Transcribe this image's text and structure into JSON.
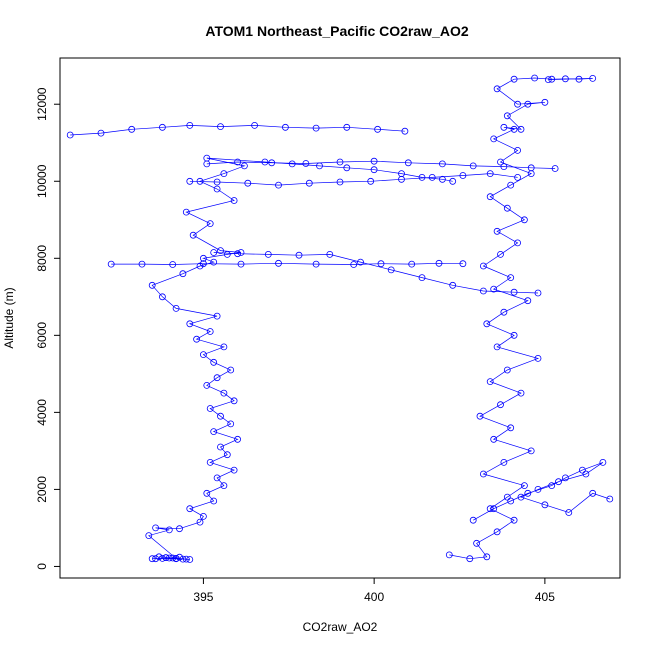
{
  "chart_data": {
    "type": "scatter",
    "title": "ATOM1 Northeast_Pacific CO2raw_AO2",
    "xlabel": "CO2raw_AO2",
    "ylabel": "Altitude (m)",
    "xlim": [
      390.8,
      407.2
    ],
    "ylim": [
      -300,
      13200
    ],
    "x_ticks": [
      395,
      400,
      405
    ],
    "y_ticks": [
      0,
      2000,
      4000,
      6000,
      8000,
      10000,
      12000
    ],
    "x_tick_labels": [
      "395",
      "400",
      "405"
    ],
    "y_tick_labels": [
      "0",
      "2000",
      "4000",
      "6000",
      "8000",
      "10000",
      "12000"
    ],
    "grid": false,
    "marker": "open-circle",
    "connected": true,
    "color": "#0000ff",
    "series": [
      {
        "x": [
          393.5,
          394.0,
          394.6,
          393.9,
          394.2,
          393.7,
          394.4,
          393.8,
          394.3,
          393.6,
          394.1,
          394.5,
          393.9,
          394.2,
          393.4,
          394.0,
          393.6,
          394.3,
          394.9,
          395.0,
          394.6,
          395.3,
          395.1,
          395.6,
          395.4,
          395.9,
          395.2,
          395.7,
          395.5,
          396.0,
          395.3,
          395.8,
          395.5,
          395.2,
          395.9,
          395.6,
          395.1,
          395.4,
          395.8,
          395.3,
          395.0,
          395.6,
          394.8,
          395.2,
          394.6,
          395.4,
          394.2,
          393.8,
          393.5,
          394.4,
          394.9,
          395.3,
          395.0,
          395.7,
          396.1,
          395.5,
          394.7,
          395.2,
          394.5,
          395.9,
          395.4,
          394.9,
          395.6,
          396.2,
          395.1,
          396.8,
          397.6,
          398.4,
          399.2,
          400.0,
          400.8,
          401.4,
          402.0,
          402.3
        ],
        "y": [
          200,
          220,
          180,
          230,
          200,
          250,
          190,
          210,
          240,
          200,
          220,
          190,
          230,
          210,
          800,
          950,
          1000,
          980,
          1150,
          1300,
          1500,
          1700,
          1900,
          2100,
          2300,
          2500,
          2700,
          2900,
          3100,
          3300,
          3500,
          3700,
          3900,
          4100,
          4300,
          4500,
          4700,
          4900,
          5100,
          5300,
          5500,
          5700,
          5900,
          6100,
          6300,
          6500,
          6700,
          7000,
          7300,
          7600,
          7800,
          7900,
          8000,
          8100,
          8150,
          8200,
          8600,
          8900,
          9200,
          9500,
          9800,
          10000,
          10200,
          10400,
          10600,
          10500,
          10450,
          10400,
          10350,
          10300,
          10200,
          10100,
          10050,
          10000
        ],
        "name": ""
      },
      {
        "x": [
          392.3,
          393.2,
          394.1,
          395.0,
          396.1,
          397.2,
          398.3,
          399.4,
          400.2,
          401.1,
          401.9,
          402.6
        ],
        "y": [
          7850,
          7850,
          7840,
          7860,
          7850,
          7870,
          7850,
          7840,
          7860,
          7850,
          7870,
          7860
        ],
        "name": ""
      },
      {
        "x": [
          391.1,
          392.0,
          392.9,
          393.8,
          394.6,
          395.5,
          396.5,
          397.4,
          398.3,
          399.2,
          400.1,
          400.9
        ],
        "y": [
          11200,
          11250,
          11350,
          11400,
          11450,
          11420,
          11450,
          11400,
          11380,
          11400,
          11350,
          11300
        ],
        "name": ""
      },
      {
        "x": [
          395.3,
          396.0,
          396.9,
          397.8,
          398.7,
          399.6,
          400.5,
          401.4,
          402.3,
          403.2,
          404.1,
          404.8
        ],
        "y": [
          8150,
          8120,
          8100,
          8080,
          8100,
          7900,
          7700,
          7500,
          7300,
          7150,
          7120,
          7100
        ],
        "name": ""
      },
      {
        "x": [
          395.1,
          396.0,
          397.0,
          398.0,
          399.0,
          400.0,
          401.0,
          402.0,
          402.9,
          403.8,
          404.6,
          405.3
        ],
        "y": [
          10450,
          10500,
          10480,
          10460,
          10500,
          10520,
          10480,
          10450,
          10400,
          10380,
          10350,
          10330
        ],
        "name": ""
      },
      {
        "x": [
          394.6,
          395.4,
          396.3,
          397.2,
          398.1,
          399.0,
          399.9,
          400.8,
          401.7,
          402.6,
          403.4,
          404.2
        ],
        "y": [
          10000,
          9980,
          9950,
          9900,
          9950,
          9980,
          10000,
          10050,
          10100,
          10150,
          10200,
          10100
        ],
        "name": ""
      },
      {
        "x": [
          402.2,
          402.8,
          403.3,
          403.0,
          403.6,
          404.1,
          403.4,
          403.9,
          404.4,
          403.2,
          403.8,
          404.6,
          403.5,
          404.0,
          403.1,
          403.7,
          404.3,
          403.4,
          403.9,
          404.8,
          403.6,
          404.1,
          403.3,
          403.8,
          404.5,
          403.5,
          404.0,
          403.2,
          403.7,
          404.2,
          403.6,
          404.4,
          403.9,
          403.4,
          404.0,
          404.6,
          403.7,
          404.2,
          403.5,
          404.1,
          403.8,
          404.3,
          403.9,
          404.5,
          405.0,
          404.2,
          403.6,
          404.1,
          404.7,
          405.2,
          405.6,
          406.0,
          406.4,
          405.1
        ],
        "y": [
          300,
          200,
          250,
          600,
          900,
          1200,
          1500,
          1800,
          2100,
          2400,
          2700,
          3000,
          3300,
          3600,
          3900,
          4200,
          4500,
          4800,
          5100,
          5400,
          5700,
          6000,
          6300,
          6600,
          6900,
          7200,
          7500,
          7800,
          8100,
          8400,
          8700,
          9000,
          9300,
          9600,
          9900,
          10200,
          10500,
          10800,
          11100,
          11350,
          11400,
          11350,
          11700,
          12000,
          12050,
          12000,
          12400,
          12650,
          12680,
          12650,
          12660,
          12650,
          12670,
          12640
        ],
        "name": ""
      },
      {
        "x": [
          402.9,
          403.5,
          404.0,
          404.5,
          405.2,
          405.6,
          406.1,
          406.7,
          406.2,
          405.4,
          404.8,
          404.3,
          405.0,
          405.7,
          406.4,
          406.9
        ],
        "y": [
          1200,
          1500,
          1700,
          1900,
          2100,
          2300,
          2500,
          2700,
          2400,
          2200,
          2000,
          1800,
          1600,
          1400,
          1900,
          1750
        ],
        "name": ""
      }
    ]
  }
}
